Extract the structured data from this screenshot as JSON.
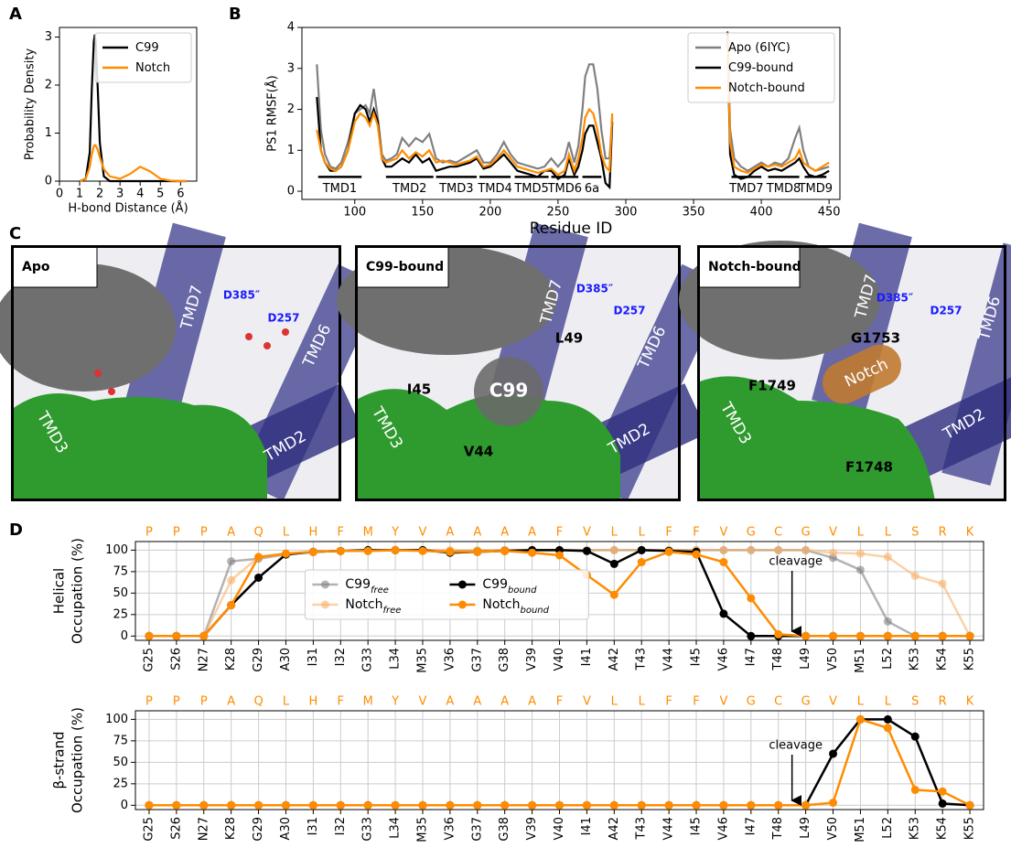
{
  "panel_labels": [
    "A",
    "B",
    "C",
    "D"
  ],
  "chart_data": [
    {
      "type": "line",
      "xlabel": "H-bond Distance (Å)",
      "ylabel": [
        "Probability Density"
      ],
      "x": [
        1.0,
        1.3,
        1.5,
        1.6,
        1.7,
        1.75,
        1.8,
        1.9,
        2.0,
        2.2,
        2.5,
        3.0,
        3.5,
        4.0,
        4.5,
        5.0,
        5.5,
        6.0,
        6.3
      ],
      "series": [
        {
          "name": "C99",
          "color": "#000000",
          "values": [
            0,
            0.05,
            0.6,
            1.9,
            2.9,
            3.05,
            2.9,
            1.9,
            0.8,
            0.1,
            0,
            0,
            0,
            0,
            0,
            0,
            0,
            0,
            0
          ]
        },
        {
          "name": "Notch",
          "color": "#ff8c00",
          "values": [
            0,
            0.05,
            0.3,
            0.55,
            0.72,
            0.75,
            0.74,
            0.65,
            0.5,
            0.25,
            0.1,
            0.05,
            0.15,
            0.3,
            0.2,
            0.05,
            0.01,
            0,
            0
          ]
        }
      ],
      "xlim": [
        0,
        6.8
      ],
      "xticks": [
        0,
        1,
        2,
        3,
        4,
        5,
        6
      ],
      "ylim": [
        0,
        3.2
      ],
      "yticks": [
        0,
        1,
        2,
        3
      ],
      "legend": "upper right"
    },
    {
      "type": "line",
      "xlabel": "Residue ID",
      "ylabel": [
        "PS1 RMSF(Å)"
      ],
      "x": [
        72,
        75,
        78,
        82,
        86,
        90,
        95,
        100,
        104,
        108,
        111,
        114,
        117,
        120,
        123,
        127,
        131,
        135,
        140,
        145,
        150,
        155,
        160,
        165,
        170,
        175,
        180,
        185,
        190,
        195,
        200,
        205,
        210,
        215,
        220,
        225,
        230,
        235,
        240,
        245,
        250,
        255,
        258,
        262,
        265,
        268,
        270,
        273,
        276,
        279,
        282,
        285,
        288,
        290,
        330,
        375,
        377,
        380,
        385,
        390,
        395,
        400,
        405,
        410,
        415,
        420,
        425,
        428,
        431,
        435,
        440,
        445,
        450
      ],
      "series": [
        {
          "name": "Apo (6IYC)",
          "color": "#808080",
          "values": [
            3.1,
            1.5,
            0.9,
            0.6,
            0.55,
            0.7,
            1.2,
            1.9,
            2.0,
            2.1,
            1.9,
            2.5,
            1.8,
            0.9,
            0.75,
            0.8,
            0.9,
            1.3,
            1.1,
            1.3,
            1.2,
            1.4,
            0.8,
            0.7,
            0.75,
            0.7,
            0.8,
            0.9,
            1.0,
            0.7,
            0.7,
            0.9,
            1.2,
            0.9,
            0.7,
            0.65,
            0.6,
            0.55,
            0.6,
            0.8,
            0.6,
            0.8,
            1.2,
            0.7,
            1.1,
            2.0,
            2.8,
            3.1,
            3.1,
            2.5,
            1.5,
            0.8,
            0.8,
            1.8,
            null,
            3.9,
            1.5,
            0.8,
            0.6,
            0.5,
            0.6,
            0.7,
            0.6,
            0.7,
            0.65,
            0.8,
            1.3,
            1.55,
            1.0,
            0.6,
            0.5,
            0.55,
            0.6
          ]
        },
        {
          "name": "C99-bound",
          "color": "#000000",
          "values": [
            2.3,
            1.0,
            0.7,
            0.5,
            0.5,
            0.6,
            1.0,
            1.9,
            2.1,
            2.0,
            1.7,
            2.0,
            1.7,
            0.8,
            0.6,
            0.6,
            0.7,
            0.8,
            0.7,
            0.9,
            0.7,
            0.8,
            0.5,
            0.55,
            0.6,
            0.6,
            0.65,
            0.7,
            0.8,
            0.55,
            0.6,
            0.75,
            0.9,
            0.7,
            0.5,
            0.45,
            0.4,
            0.35,
            0.5,
            0.5,
            0.3,
            0.4,
            0.8,
            0.4,
            0.6,
            1.0,
            1.4,
            1.6,
            1.6,
            1.2,
            0.8,
            0.2,
            0.1,
            1.7,
            null,
            3.9,
            0.9,
            0.4,
            0.3,
            0.35,
            0.5,
            0.6,
            0.5,
            0.55,
            0.5,
            0.6,
            0.7,
            0.8,
            0.6,
            0.4,
            0.35,
            0.4,
            0.5
          ]
        },
        {
          "name": "Notch-bound",
          "color": "#ff8c00",
          "values": [
            1.5,
            1.0,
            0.7,
            0.55,
            0.5,
            0.6,
            1.0,
            1.7,
            1.9,
            1.8,
            1.6,
            1.9,
            1.6,
            0.8,
            0.7,
            0.75,
            0.8,
            1.0,
            0.8,
            0.95,
            0.85,
            1.0,
            0.7,
            0.75,
            0.7,
            0.65,
            0.7,
            0.75,
            0.85,
            0.6,
            0.65,
            0.8,
            1.0,
            0.8,
            0.6,
            0.55,
            0.5,
            0.45,
            0.5,
            0.55,
            0.4,
            0.5,
            0.9,
            0.5,
            0.8,
            1.3,
            1.8,
            2.0,
            1.9,
            1.5,
            0.9,
            0.6,
            0.5,
            1.9,
            null,
            3.8,
            1.2,
            0.6,
            0.5,
            0.45,
            0.55,
            0.65,
            0.6,
            0.65,
            0.6,
            0.7,
            0.8,
            1.0,
            0.7,
            0.6,
            0.5,
            0.6,
            0.7
          ]
        }
      ],
      "regions": [
        {
          "label": "TMD1",
          "start": 73,
          "end": 105
        },
        {
          "label": "TMD2",
          "start": 123,
          "end": 158
        },
        {
          "label": "TMD3",
          "start": 160,
          "end": 190
        },
        {
          "label": "TMD4",
          "start": 192,
          "end": 215
        },
        {
          "label": "TMD5",
          "start": 218,
          "end": 243
        },
        {
          "label": "TMD6",
          "start": 245,
          "end": 265
        },
        {
          "label": "6a",
          "start": 268,
          "end": 282
        },
        {
          "label": "TMD7",
          "start": 378,
          "end": 400
        },
        {
          "label": "TMD8",
          "start": 405,
          "end": 428
        },
        {
          "label": "TMD9",
          "start": 432,
          "end": 448
        }
      ],
      "xlim": [
        61,
        458
      ],
      "xticks": [
        100,
        150,
        200,
        250,
        300,
        350,
        400,
        450
      ],
      "ylim": [
        -0.2,
        4
      ],
      "yticks": [
        0,
        1,
        2,
        3,
        4
      ],
      "legend": "upper right"
    },
    {
      "type": "line",
      "ylabel": [
        "Helical",
        "Occupation (%)"
      ],
      "categories": [
        "G25",
        "S26",
        "N27",
        "K28",
        "G29",
        "A30",
        "I31",
        "I32",
        "G33",
        "L34",
        "M35",
        "V36",
        "G37",
        "G38",
        "V39",
        "V40",
        "I41",
        "A42",
        "T43",
        "V44",
        "I45",
        "V46",
        "I47",
        "T48",
        "L49",
        "V50",
        "M51",
        "L52",
        "K53",
        "K54",
        "K55"
      ],
      "residue_letters": [
        "P",
        "P",
        "P",
        "A",
        "Q",
        "L",
        "H",
        "F",
        "M",
        "Y",
        "V",
        "A",
        "A",
        "A",
        "A",
        "F",
        "V",
        "L",
        "L",
        "F",
        "F",
        "V",
        "G",
        "C",
        "G",
        "V",
        "L",
        "L",
        "S",
        "R",
        "K"
      ],
      "series": [
        {
          "name": "C99",
          "name_subscript": "free",
          "color": "#808080",
          "opacity": 0.6,
          "values": [
            0,
            0,
            0,
            87,
            90,
            95,
            98,
            99,
            99,
            100,
            100,
            99,
            99,
            100,
            100,
            100,
            100,
            100,
            100,
            100,
            100,
            100,
            100,
            100,
            100,
            91,
            77,
            17,
            0,
            0,
            0
          ]
        },
        {
          "name": "Notch",
          "name_subscript": "free",
          "color": "#f9b26a",
          "opacity": 0.6,
          "values": [
            0,
            0,
            0,
            65,
            92,
            95,
            98,
            99,
            99,
            100,
            100,
            100,
            100,
            100,
            100,
            100,
            100,
            100,
            100,
            100,
            100,
            100,
            100,
            100,
            100,
            97,
            96,
            92,
            70,
            61,
            0
          ]
        },
        {
          "name": "C99",
          "name_subscript": "bound",
          "color": "#000000",
          "opacity": 1,
          "values": [
            0,
            0,
            0,
            36,
            68,
            95,
            98,
            99,
            100,
            100,
            100,
            97,
            98,
            99,
            100,
            100,
            99,
            84,
            100,
            99,
            98,
            26,
            0,
            0,
            0,
            0,
            0,
            0,
            0,
            0,
            0
          ]
        },
        {
          "name": "Notch",
          "name_subscript": "bound",
          "color": "#ff8c00",
          "opacity": 1,
          "values": [
            0,
            0,
            0,
            36,
            92,
            96,
            98,
            99,
            99,
            100,
            99,
            98,
            98,
            99,
            97,
            94,
            71,
            48,
            86,
            98,
            95,
            86,
            44,
            2,
            0,
            0,
            0,
            0,
            0,
            0,
            0
          ]
        }
      ],
      "annotation": "cleavage",
      "ylim": [
        -5,
        110
      ],
      "yticks": [
        0,
        25,
        50,
        75,
        100
      ],
      "grid": true,
      "markers": true,
      "legend": "center",
      "legend_ncol": 2
    },
    {
      "type": "line",
      "ylabel": [
        "β-strand",
        "Occupation (%)"
      ],
      "categories": [
        "G25",
        "S26",
        "N27",
        "K28",
        "G29",
        "A30",
        "I31",
        "I32",
        "G33",
        "L34",
        "M35",
        "V36",
        "G37",
        "G38",
        "V39",
        "V40",
        "I41",
        "A42",
        "T43",
        "V44",
        "I45",
        "V46",
        "I47",
        "T48",
        "L49",
        "V50",
        "M51",
        "L52",
        "K53",
        "K54",
        "K55"
      ],
      "residue_letters": [
        "P",
        "P",
        "P",
        "A",
        "Q",
        "L",
        "H",
        "F",
        "M",
        "Y",
        "V",
        "A",
        "A",
        "A",
        "A",
        "F",
        "V",
        "L",
        "L",
        "F",
        "F",
        "V",
        "G",
        "C",
        "G",
        "V",
        "L",
        "L",
        "S",
        "R",
        "K"
      ],
      "series": [
        {
          "color": "#000000",
          "opacity": 1,
          "values": [
            0,
            0,
            0,
            0,
            0,
            0,
            0,
            0,
            0,
            0,
            0,
            0,
            0,
            0,
            0,
            0,
            0,
            0,
            0,
            0,
            0,
            0,
            0,
            0,
            0,
            60,
            100,
            100,
            80,
            2,
            0
          ]
        },
        {
          "color": "#ff8c00",
          "opacity": 1,
          "values": [
            0,
            0,
            0,
            0,
            0,
            0,
            0,
            0,
            0,
            0,
            0,
            0,
            0,
            0,
            0,
            0,
            0,
            0,
            0,
            0,
            0,
            0,
            0,
            0,
            0,
            3,
            100,
            90,
            18,
            16,
            0
          ]
        }
      ],
      "annotation": "cleavage",
      "ylim": [
        -5,
        110
      ],
      "yticks": [
        0,
        25,
        50,
        75,
        100
      ],
      "grid": true,
      "markers": true
    }
  ],
  "structure_panels": [
    {
      "title": "Apo",
      "labels": [
        "TMD7",
        "D385″",
        "D257",
        "TMD6",
        "TMD3",
        "TMD2"
      ]
    },
    {
      "title": "C99-bound",
      "labels": [
        "TMD7",
        "D385″",
        "D257",
        "L49",
        "TMD6",
        "I45",
        "C99",
        "TMD3",
        "V44",
        "TMD2"
      ]
    },
    {
      "title": "Notch-bound",
      "labels": [
        "TMD7",
        "D385″",
        "D257",
        "TMD6",
        "G1753",
        "F1749",
        "Notch",
        "TMD3",
        "TMD2",
        "F1748"
      ]
    }
  ]
}
